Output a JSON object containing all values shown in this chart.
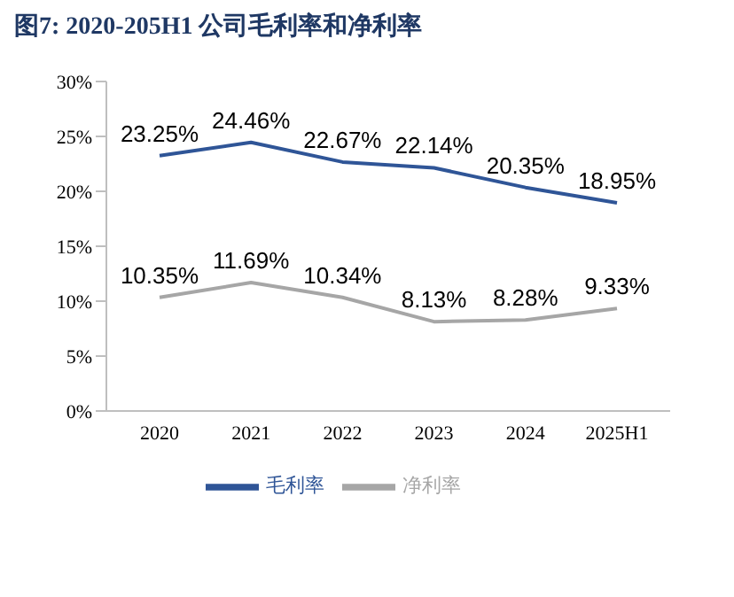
{
  "chart_data": {
    "type": "line",
    "title": "图7:  2020-205H1 公司毛利率和净利率",
    "categories": [
      "2020",
      "2021",
      "2022",
      "2023",
      "2024",
      "2025H1"
    ],
    "series": [
      {
        "name": "毛利率",
        "color": "#2f5597",
        "values": [
          23.25,
          24.46,
          22.67,
          22.14,
          20.35,
          18.95
        ],
        "value_labels": [
          "23.25%",
          "24.46%",
          "22.67%",
          "22.14%",
          "20.35%",
          "18.95%"
        ]
      },
      {
        "name": "净利率",
        "color": "#a6a6a6",
        "values": [
          10.35,
          11.69,
          10.34,
          8.13,
          8.28,
          9.33
        ],
        "value_labels": [
          "10.35%",
          "11.69%",
          "10.34%",
          "8.13%",
          "8.28%",
          "9.33%"
        ]
      }
    ],
    "ylim": [
      0,
      30
    ],
    "yticks": [
      {
        "value": 0,
        "label": "0%"
      },
      {
        "value": 5,
        "label": "5%"
      },
      {
        "value": 10,
        "label": "10%"
      },
      {
        "value": 15,
        "label": "15%"
      },
      {
        "value": 20,
        "label": "20%"
      },
      {
        "value": 25,
        "label": "25%"
      },
      {
        "value": 30,
        "label": "30%"
      }
    ],
    "grid": false,
    "legend": "bottom",
    "marker": "none",
    "line_style": "solid"
  }
}
